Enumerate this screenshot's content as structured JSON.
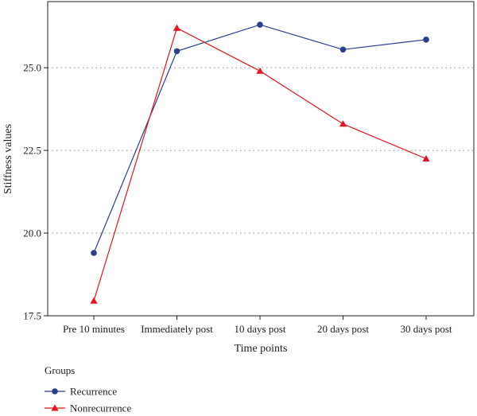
{
  "chart_data": {
    "type": "line",
    "title": "",
    "xlabel": "Time points",
    "ylabel": "Stiffness values",
    "categories": [
      "Pre 10 minutes",
      "Immediately post",
      "10 days post",
      "20 days post",
      "30 days post"
    ],
    "yticks": [
      "17.5",
      "20.0",
      "22.5",
      "25.0"
    ],
    "ylim": [
      17.5,
      27.0
    ],
    "grid": "horizontal dotted",
    "legend_title": "Groups",
    "legend_position": "bottom-left",
    "series": [
      {
        "name": "Recurrence",
        "marker": "circle",
        "color": "#2b3f8f",
        "values": [
          19.4,
          25.5,
          26.3,
          25.55,
          25.85
        ]
      },
      {
        "name": "Nonrecurrence",
        "marker": "triangle",
        "color": "#e8131e",
        "values": [
          17.95,
          26.2,
          24.9,
          23.3,
          22.25
        ]
      }
    ]
  }
}
